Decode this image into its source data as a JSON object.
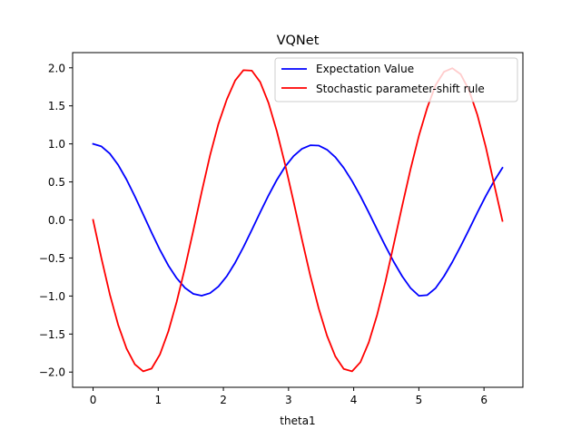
{
  "chart_data": {
    "type": "line",
    "title": "VQNet",
    "xlabel": "theta1",
    "ylabel": "",
    "xlim": [
      -0.314,
      6.597
    ],
    "ylim": [
      -2.2,
      2.2
    ],
    "xticks": [
      0,
      1,
      2,
      3,
      4,
      5,
      6
    ],
    "yticks": [
      -2.0,
      -1.5,
      -1.0,
      -0.5,
      0.0,
      0.5,
      1.0,
      1.5,
      2.0
    ],
    "ytick_labels": [
      "−2.0",
      "−1.5",
      "−1.0",
      "−0.5",
      "0.0",
      "0.5",
      "1.0",
      "1.5",
      "2.0"
    ],
    "legend_position": "top-right",
    "grid": false,
    "series": [
      {
        "name": "Expectation Value",
        "color": "#0000ff",
        "x": [
          0,
          0.1282,
          0.2565,
          0.3847,
          0.5129,
          0.6411,
          0.7694,
          0.8976,
          1.0258,
          1.1541,
          1.2823,
          1.4105,
          1.5387,
          1.667,
          1.7952,
          1.9234,
          2.0517,
          2.1799,
          2.3081,
          2.4363,
          2.5646,
          2.6928,
          2.821,
          2.9493,
          3.0775,
          3.2057,
          3.3339,
          3.4622,
          3.5904,
          3.7186,
          3.8469,
          3.9751,
          4.1033,
          4.2315,
          4.3598,
          4.488,
          4.6162,
          4.7445,
          4.8727,
          5.0009,
          5.1291,
          5.2574,
          5.3856,
          5.5138,
          5.6421,
          5.7703,
          5.8985,
          6.0267,
          6.155,
          6.2832
        ],
        "y": [
          1.0,
          0.967,
          0.873,
          0.724,
          0.532,
          0.31,
          0.073,
          -0.165,
          -0.393,
          -0.597,
          -0.764,
          -0.893,
          -0.972,
          -0.996,
          -0.962,
          -0.876,
          -0.74,
          -0.563,
          -0.356,
          -0.131,
          0.1,
          0.323,
          0.528,
          0.703,
          0.84,
          0.935,
          0.982,
          0.978,
          0.924,
          0.825,
          0.685,
          0.512,
          0.314,
          0.098,
          -0.126,
          -0.345,
          -0.553,
          -0.741,
          -0.896,
          -0.997,
          -0.988,
          -0.896,
          -0.741,
          -0.553,
          -0.345,
          -0.126,
          0.098,
          0.314,
          0.512,
          0.685
        ]
      },
      {
        "name": "Stochastic parameter-shift rule",
        "color": "#ff0000",
        "x": [
          0,
          0.1282,
          0.2565,
          0.3847,
          0.5129,
          0.6411,
          0.7694,
          0.8976,
          1.0258,
          1.1541,
          1.2823,
          1.4105,
          1.5387,
          1.667,
          1.7952,
          1.9234,
          2.0517,
          2.1799,
          2.3081,
          2.4363,
          2.5646,
          2.6928,
          2.821,
          2.9493,
          3.0775,
          3.2057,
          3.3339,
          3.4622,
          3.5904,
          3.7186,
          3.8469,
          3.9751,
          4.1033,
          4.2315,
          4.3598,
          4.488,
          4.6162,
          4.7445,
          4.8727,
          5.0009,
          5.1291,
          5.2574,
          5.3856,
          5.5138,
          5.6421,
          5.7703,
          5.8985,
          6.0267,
          6.155,
          6.2832
        ],
        "y": [
          0.0,
          -0.505,
          -0.976,
          -1.379,
          -1.689,
          -1.898,
          -1.99,
          -1.954,
          -1.769,
          -1.468,
          -1.079,
          -0.628,
          -0.138,
          0.369,
          0.849,
          1.262,
          1.583,
          1.832,
          1.969,
          1.963,
          1.813,
          1.538,
          1.164,
          0.722,
          0.24,
          -0.255,
          -0.732,
          -1.161,
          -1.522,
          -1.795,
          -1.958,
          -1.99,
          -1.87,
          -1.61,
          -1.247,
          -0.807,
          -0.315,
          0.186,
          0.668,
          1.107,
          1.476,
          1.773,
          1.947,
          1.995,
          1.915,
          1.706,
          1.38,
          0.962,
          0.47,
          -0.012
        ]
      }
    ]
  }
}
